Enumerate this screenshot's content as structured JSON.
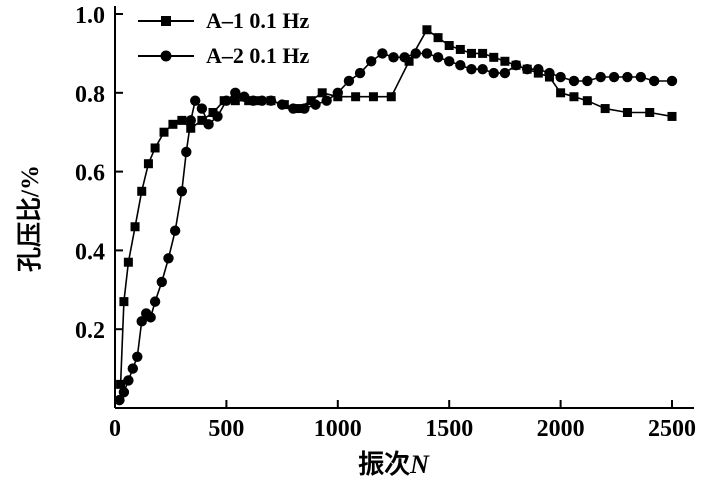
{
  "chart_data": {
    "type": "line",
    "title": "",
    "xlabel_text": "振次",
    "xlabel_var": "N",
    "ylabel": "孔压比/%",
    "xlim": [
      0,
      2500
    ],
    "ylim": [
      0,
      1.0
    ],
    "x_ticks": [
      "0",
      "500",
      "1000",
      "1500",
      "2000",
      "2500"
    ],
    "y_ticks": [
      "0.2",
      "0.4",
      "0.6",
      "0.8",
      "1.0"
    ],
    "grid": false,
    "legend_position": "top-left",
    "line_color": "#000000",
    "series": [
      {
        "name": "A–1 0.1 Hz",
        "marker": "square",
        "points": [
          [
            25,
            0.06
          ],
          [
            40,
            0.27
          ],
          [
            60,
            0.37
          ],
          [
            90,
            0.46
          ],
          [
            120,
            0.55
          ],
          [
            150,
            0.62
          ],
          [
            180,
            0.66
          ],
          [
            220,
            0.7
          ],
          [
            260,
            0.72
          ],
          [
            300,
            0.73
          ],
          [
            340,
            0.71
          ],
          [
            390,
            0.73
          ],
          [
            440,
            0.75
          ],
          [
            490,
            0.78
          ],
          [
            540,
            0.78
          ],
          [
            600,
            0.78
          ],
          [
            650,
            0.78
          ],
          [
            700,
            0.78
          ],
          [
            760,
            0.77
          ],
          [
            820,
            0.76
          ],
          [
            880,
            0.78
          ],
          [
            930,
            0.8
          ],
          [
            1000,
            0.79
          ],
          [
            1080,
            0.79
          ],
          [
            1160,
            0.79
          ],
          [
            1240,
            0.79
          ],
          [
            1320,
            0.88
          ],
          [
            1400,
            0.96
          ],
          [
            1450,
            0.94
          ],
          [
            1500,
            0.92
          ],
          [
            1550,
            0.91
          ],
          [
            1600,
            0.9
          ],
          [
            1650,
            0.9
          ],
          [
            1700,
            0.89
          ],
          [
            1750,
            0.88
          ],
          [
            1800,
            0.87
          ],
          [
            1850,
            0.86
          ],
          [
            1900,
            0.85
          ],
          [
            1950,
            0.84
          ],
          [
            2000,
            0.8
          ],
          [
            2060,
            0.79
          ],
          [
            2120,
            0.78
          ],
          [
            2200,
            0.76
          ],
          [
            2300,
            0.75
          ],
          [
            2400,
            0.75
          ],
          [
            2500,
            0.74
          ]
        ]
      },
      {
        "name": "A–2 0.1 Hz",
        "marker": "circle",
        "points": [
          [
            20,
            0.02
          ],
          [
            40,
            0.04
          ],
          [
            60,
            0.07
          ],
          [
            80,
            0.1
          ],
          [
            100,
            0.13
          ],
          [
            120,
            0.22
          ],
          [
            140,
            0.24
          ],
          [
            160,
            0.23
          ],
          [
            180,
            0.27
          ],
          [
            210,
            0.32
          ],
          [
            240,
            0.38
          ],
          [
            270,
            0.45
          ],
          [
            300,
            0.55
          ],
          [
            320,
            0.65
          ],
          [
            340,
            0.73
          ],
          [
            360,
            0.78
          ],
          [
            390,
            0.76
          ],
          [
            420,
            0.72
          ],
          [
            460,
            0.74
          ],
          [
            500,
            0.78
          ],
          [
            540,
            0.8
          ],
          [
            580,
            0.79
          ],
          [
            620,
            0.78
          ],
          [
            660,
            0.78
          ],
          [
            700,
            0.78
          ],
          [
            750,
            0.77
          ],
          [
            800,
            0.76
          ],
          [
            850,
            0.76
          ],
          [
            900,
            0.77
          ],
          [
            950,
            0.78
          ],
          [
            1000,
            0.8
          ],
          [
            1050,
            0.83
          ],
          [
            1100,
            0.85
          ],
          [
            1150,
            0.88
          ],
          [
            1200,
            0.9
          ],
          [
            1250,
            0.89
          ],
          [
            1300,
            0.89
          ],
          [
            1350,
            0.9
          ],
          [
            1400,
            0.9
          ],
          [
            1450,
            0.89
          ],
          [
            1500,
            0.88
          ],
          [
            1550,
            0.87
          ],
          [
            1600,
            0.86
          ],
          [
            1650,
            0.86
          ],
          [
            1700,
            0.85
          ],
          [
            1750,
            0.85
          ],
          [
            1800,
            0.87
          ],
          [
            1850,
            0.86
          ],
          [
            1900,
            0.86
          ],
          [
            1950,
            0.85
          ],
          [
            2000,
            0.84
          ],
          [
            2060,
            0.83
          ],
          [
            2120,
            0.83
          ],
          [
            2180,
            0.84
          ],
          [
            2240,
            0.84
          ],
          [
            2300,
            0.84
          ],
          [
            2360,
            0.84
          ],
          [
            2420,
            0.83
          ],
          [
            2500,
            0.83
          ]
        ]
      }
    ]
  }
}
